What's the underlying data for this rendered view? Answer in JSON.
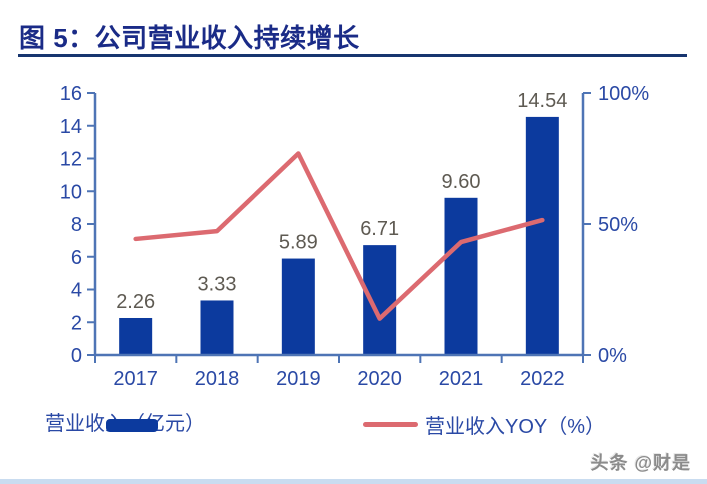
{
  "title": "图 5：公司营业收入持续增长",
  "watermark": "头条 @财是",
  "colors": {
    "title": "#1A2B87",
    "title_rule": "#17356F",
    "axis_line": "#4E74B5",
    "axis_label": "#2A49A5",
    "bar": "#0C3A9E",
    "line": "#DC6A70",
    "data_label": "#5E5A52",
    "watermark": "#8B8B8B",
    "bottom_strip": "#C9DCF0"
  },
  "chart_data": {
    "type": "bar",
    "title": "图 5：公司营业收入持续增长",
    "categories": [
      "2017",
      "2018",
      "2019",
      "2020",
      "2021",
      "2022"
    ],
    "series": [
      {
        "name": "营业收入（亿元）",
        "type": "bar",
        "axis": "left",
        "values": [
          2.26,
          3.33,
          5.89,
          6.71,
          9.6,
          14.54
        ],
        "labels": [
          "2.26",
          "3.33",
          "5.89",
          "6.71",
          "9.60",
          "14.54"
        ]
      },
      {
        "name": "营业收入YOY（%）",
        "type": "line",
        "axis": "right",
        "values": [
          44.3,
          47.3,
          76.9,
          13.9,
          43.1,
          51.5
        ]
      }
    ],
    "left_axis": {
      "min": 0,
      "max": 16,
      "tick_values": [
        0,
        2,
        4,
        6,
        8,
        10,
        12,
        14,
        16
      ],
      "tick_labels": [
        "0",
        "2",
        "4",
        "6",
        "8",
        "10",
        "12",
        "14",
        "16"
      ]
    },
    "right_axis": {
      "min": 0,
      "max": 100,
      "tick_values": [
        0,
        50,
        100
      ],
      "tick_labels": [
        "0%",
        "50%",
        "100%"
      ]
    },
    "legend": [
      {
        "label": "营业收入（亿元）",
        "marker": "bar"
      },
      {
        "label": "营业收入YOY（%）",
        "marker": "line"
      }
    ],
    "grid": false,
    "legend_position": "bottom"
  }
}
